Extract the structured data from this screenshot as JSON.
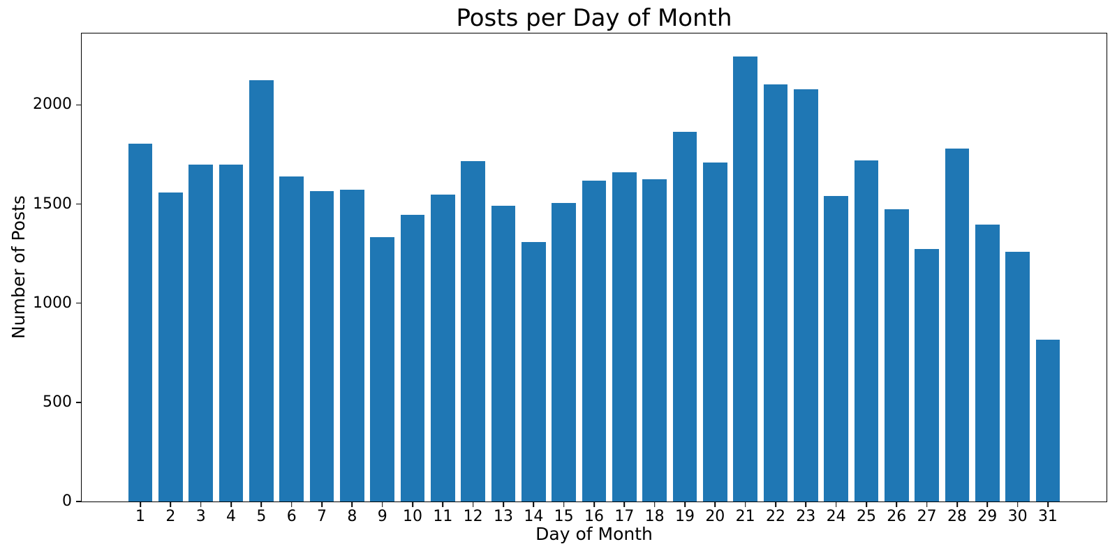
{
  "chart_data": {
    "type": "bar",
    "title": "Posts per Day of Month",
    "xlabel": "Day of Month",
    "ylabel": "Number of Posts",
    "categories": [
      "1",
      "2",
      "3",
      "4",
      "5",
      "6",
      "7",
      "8",
      "9",
      "10",
      "11",
      "12",
      "13",
      "14",
      "15",
      "16",
      "17",
      "18",
      "19",
      "20",
      "21",
      "22",
      "23",
      "24",
      "25",
      "26",
      "27",
      "28",
      "29",
      "30",
      "31"
    ],
    "values": [
      1805,
      1558,
      1700,
      1700,
      2125,
      1640,
      1565,
      1572,
      1333,
      1447,
      1547,
      1715,
      1490,
      1310,
      1505,
      1618,
      1660,
      1625,
      1865,
      1710,
      2245,
      2105,
      2080,
      1540,
      1720,
      1475,
      1275,
      1780,
      1398,
      1260,
      815
    ],
    "yticks": [
      0,
      500,
      1000,
      1500,
      2000
    ],
    "ylim": [
      0,
      2360
    ],
    "bar_color": "#1f77b4",
    "axis_color": "#000000",
    "grid": false,
    "legend": null
  }
}
